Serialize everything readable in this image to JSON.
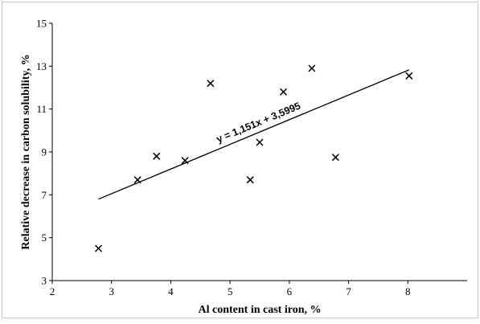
{
  "chart_data": {
    "type": "scatter",
    "xlabel": "Al content in cast iron, %",
    "ylabel": "Relative decrease  in carbon solubility, %",
    "xlim": [
      2,
      9
    ],
    "ylim": [
      3,
      15
    ],
    "x_ticks": [
      "2",
      "3",
      "4",
      "5",
      "6",
      "7",
      "8"
    ],
    "y_ticks": [
      "3",
      "5",
      "7",
      "9",
      "11",
      "13",
      "15"
    ],
    "grid": false,
    "marker": "x",
    "points": [
      {
        "x": 2.78,
        "y": 4.5
      },
      {
        "x": 3.44,
        "y": 7.7
      },
      {
        "x": 3.76,
        "y": 8.8
      },
      {
        "x": 4.24,
        "y": 8.6
      },
      {
        "x": 4.67,
        "y": 12.2
      },
      {
        "x": 5.34,
        "y": 7.7
      },
      {
        "x": 5.5,
        "y": 9.45
      },
      {
        "x": 5.9,
        "y": 11.8
      },
      {
        "x": 6.38,
        "y": 12.9
      },
      {
        "x": 6.78,
        "y": 8.75
      },
      {
        "x": 8.02,
        "y": 12.55
      }
    ],
    "trendline": {
      "type": "linear",
      "slope": 1.151,
      "intercept": 3.5995,
      "x_start": 2.78,
      "x_end": 8.02,
      "label": "y = 1,151x + 3,5995"
    },
    "colors": {
      "marks": "#000000",
      "axes": "#000000",
      "background": "#ffffff",
      "frame": "#c8c8c8"
    }
  }
}
